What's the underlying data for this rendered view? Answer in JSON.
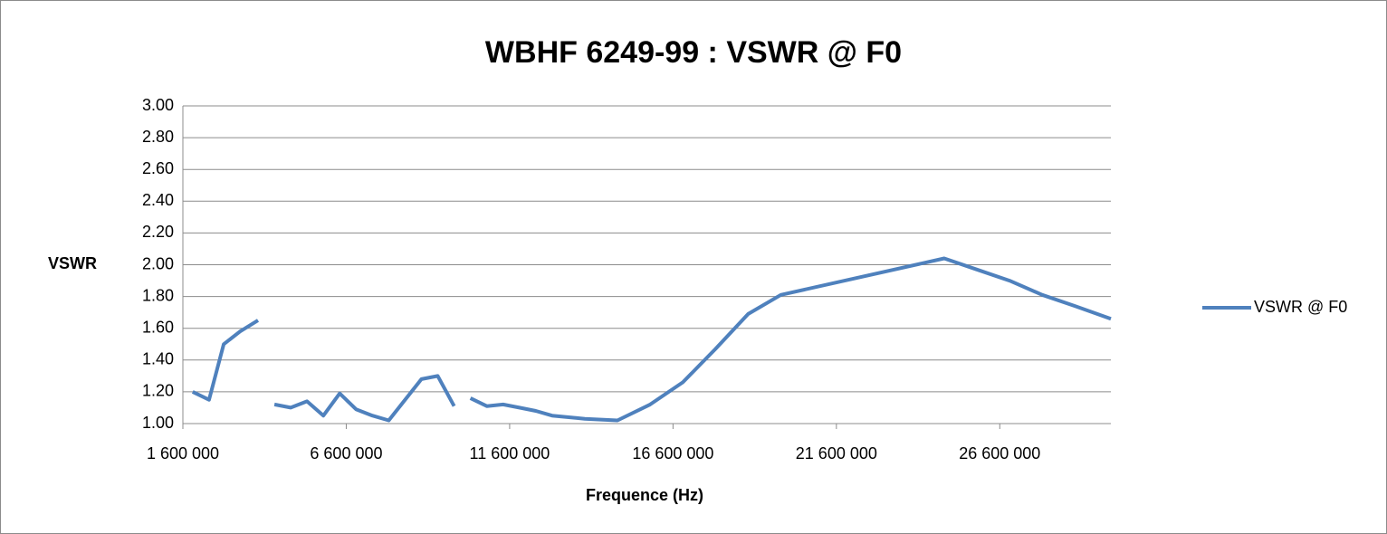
{
  "chart_data": {
    "type": "line",
    "title": "WBHF 6249-99 : VSWR @ F0",
    "x_label": "Frequence (Hz)",
    "y_label": "VSWR",
    "legend": "right",
    "grid": true,
    "xlim": [
      1600000,
      30000000
    ],
    "xticks": [
      {
        "value": 1600000,
        "label": "1 600 000"
      },
      {
        "value": 6600000,
        "label": "6 600 000"
      },
      {
        "value": 11600000,
        "label": "11 600 000"
      },
      {
        "value": 16600000,
        "label": "16 600 000"
      },
      {
        "value": 21600000,
        "label": "21 600 000"
      },
      {
        "value": 26600000,
        "label": "26 600 000"
      }
    ],
    "ylim": [
      1,
      3
    ],
    "yticks": [
      {
        "value": 1,
        "label": "1.00"
      },
      {
        "value": 1.2,
        "label": "1.20"
      },
      {
        "value": 1.4,
        "label": "1.40"
      },
      {
        "value": 1.6,
        "label": "1.60"
      },
      {
        "value": 1.8,
        "label": "1.80"
      },
      {
        "value": 2,
        "label": "2.00"
      },
      {
        "value": 2.2,
        "label": "2.20"
      },
      {
        "value": 2.4,
        "label": "2.40"
      },
      {
        "value": 2.6,
        "label": "2.60"
      },
      {
        "value": 2.8,
        "label": "2.80"
      },
      {
        "value": 3,
        "label": "3.00"
      }
    ],
    "x": [
      1900000,
      2400000,
      2850000,
      3350000,
      3900000,
      null,
      4400000,
      4900000,
      5400000,
      5900000,
      6400000,
      6900000,
      7400000,
      7900000,
      8900000,
      9400000,
      9900000,
      null,
      10400000,
      10900000,
      11400000,
      11900000,
      12400000,
      12900000,
      13900000,
      14900000,
      15900000,
      16900000,
      17900000,
      18900000,
      19900000,
      24900000,
      25900000,
      26900000,
      27900000,
      28900000,
      30000000
    ],
    "series": [
      {
        "name": "VSWR @ F0",
        "color": "#4f81bd",
        "values": [
          1.2,
          1.15,
          1.5,
          1.58,
          1.65,
          null,
          1.12,
          1.1,
          1.14,
          1.05,
          1.19,
          1.09,
          1.05,
          1.02,
          1.28,
          1.3,
          1.11,
          null,
          1.16,
          1.11,
          1.12,
          1.1,
          1.08,
          1.05,
          1.03,
          1.02,
          1.12,
          1.26,
          1.47,
          1.69,
          1.81,
          2.04,
          1.97,
          1.9,
          1.81,
          1.74,
          1.66
        ]
      }
    ]
  }
}
